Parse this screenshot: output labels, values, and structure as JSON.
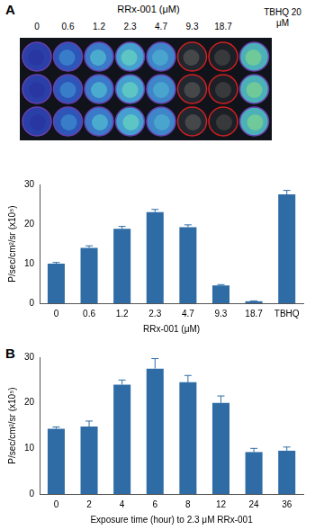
{
  "plate": {
    "panel_label": "A",
    "title": "RRx-001 (μM)",
    "columns": [
      "0",
      "0.6",
      "1.2",
      "2.3",
      "4.7",
      "9.3",
      "18.7"
    ],
    "control": "TBHQ 20 μM"
  },
  "chart_data": [
    {
      "type": "bar",
      "panel_label": "A",
      "categories": [
        "0",
        "0.6",
        "1.2",
        "2.3",
        "4.7",
        "9.3",
        "18.7",
        "TBHQ"
      ],
      "values": [
        10,
        14,
        18.8,
        23,
        19.2,
        4.5,
        0.5,
        27.5
      ],
      "errors": [
        0.3,
        0.5,
        0.6,
        0.7,
        0.6,
        0.2,
        0.1,
        1.0
      ],
      "color": "#2f6ca6",
      "x_label": "RRx-001 (μM)",
      "y_label": "P/sec/cm²/sr (x10⁵)",
      "ylim": [
        0,
        30
      ],
      "yticks": [
        0,
        10,
        20,
        30
      ],
      "grid": false
    },
    {
      "type": "bar",
      "panel_label": "B",
      "categories": [
        "0",
        "2",
        "4",
        "6",
        "8",
        "12",
        "24",
        "36"
      ],
      "values": [
        14.3,
        14.8,
        24,
        27.5,
        24.5,
        20,
        9.2,
        9.5
      ],
      "errors": [
        0.4,
        1.2,
        1.0,
        2.2,
        1.5,
        1.5,
        0.8,
        0.8
      ],
      "color": "#2f6ca6",
      "x_label": "Exposure time (hour) to 2.3 μM RRx-001",
      "y_label": "P/sec/cm²/sr (x10⁵)",
      "ylim": [
        0,
        30
      ],
      "yticks": [
        0,
        10,
        20,
        30
      ],
      "grid": false
    }
  ]
}
